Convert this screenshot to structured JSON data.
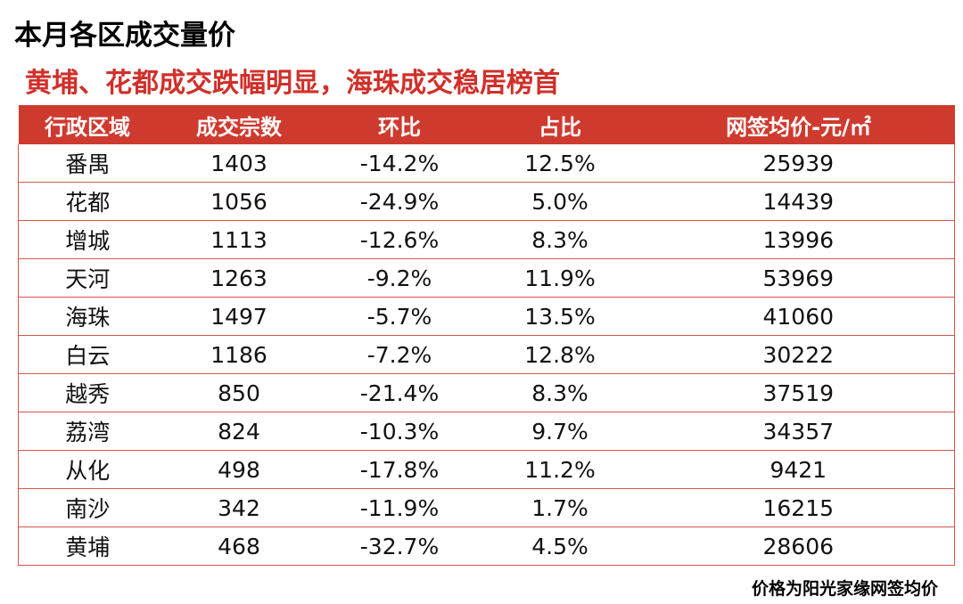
{
  "header": {
    "title": "本月各区成交量价",
    "subtitle": "黄埔、花都成交跌幅明显，海珠成交稳居榜首"
  },
  "table": {
    "columns": [
      "行政区域",
      "成交宗数",
      "环比",
      "占比",
      "网签均价-元/㎡"
    ],
    "rows": [
      [
        "番禺",
        "1403",
        "-14.2%",
        "12.5%",
        "25939"
      ],
      [
        "花都",
        "1056",
        "-24.9%",
        "5.0%",
        "14439"
      ],
      [
        "增城",
        "1113",
        "-12.6%",
        "8.3%",
        "13996"
      ],
      [
        "天河",
        "1263",
        "-9.2%",
        "11.9%",
        "53969"
      ],
      [
        "海珠",
        "1497",
        "-5.7%",
        "13.5%",
        "41060"
      ],
      [
        "白云",
        "1186",
        "-7.2%",
        "12.8%",
        "30222"
      ],
      [
        "越秀",
        "850",
        "-21.4%",
        "8.3%",
        "37519"
      ],
      [
        "荔湾",
        "824",
        "-10.3%",
        "9.7%",
        "34357"
      ],
      [
        "从化",
        "498",
        "-17.8%",
        "11.2%",
        "9421"
      ],
      [
        "南沙",
        "342",
        "-11.9%",
        "1.7%",
        "16215"
      ],
      [
        "黄埔",
        "468",
        "-32.7%",
        "4.5%",
        "28606"
      ]
    ]
  },
  "footer": {
    "note": "价格为阳光家缘网签均价"
  }
}
